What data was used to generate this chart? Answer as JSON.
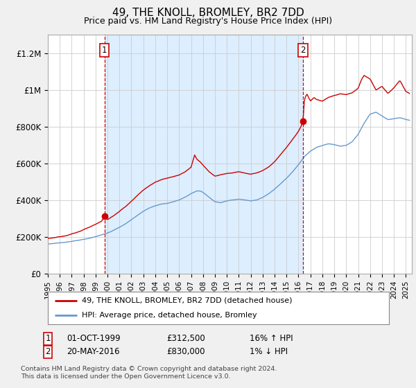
{
  "title": "49, THE KNOLL, BROMLEY, BR2 7DD",
  "subtitle": "Price paid vs. HM Land Registry's House Price Index (HPI)",
  "title_fontsize": 11,
  "subtitle_fontsize": 9,
  "background_color": "#f0f0f0",
  "plot_bg_color": "#ffffff",
  "shade_color": "#ddeeff",
  "ylabel_labels": [
    "£0",
    "£200K",
    "£400K",
    "£600K",
    "£800K",
    "£1M",
    "£1.2M"
  ],
  "ylabel_values": [
    0,
    200000,
    400000,
    600000,
    800000,
    1000000,
    1200000
  ],
  "ylim": [
    0,
    1300000
  ],
  "xlim_start": 1995.0,
  "xlim_end": 2025.5,
  "sale1_year": 1999.75,
  "sale1_price": 312500,
  "sale2_year": 2016.38,
  "sale2_price": 830000,
  "legend_entries": [
    "49, THE KNOLL, BROMLEY, BR2 7DD (detached house)",
    "HPI: Average price, detached house, Bromley"
  ],
  "annotation1": {
    "label": "1",
    "date": "01-OCT-1999",
    "price": "£312,500",
    "hpi": "16% ↑ HPI"
  },
  "annotation2": {
    "label": "2",
    "date": "20-MAY-2016",
    "price": "£830,000",
    "hpi": "1% ↓ HPI"
  },
  "footer": "Contains HM Land Registry data © Crown copyright and database right 2024.\nThis data is licensed under the Open Government Licence v3.0.",
  "line_color_red": "#cc0000",
  "line_color_blue": "#6699cc",
  "grid_color": "#cccccc",
  "hpi_knots": [
    [
      1995.0,
      160000
    ],
    [
      1995.5,
      162000
    ],
    [
      1996.0,
      165000
    ],
    [
      1996.5,
      168000
    ],
    [
      1997.0,
      172000
    ],
    [
      1997.5,
      178000
    ],
    [
      1998.0,
      185000
    ],
    [
      1998.5,
      192000
    ],
    [
      1999.0,
      200000
    ],
    [
      1999.5,
      210000
    ],
    [
      2000.0,
      220000
    ],
    [
      2000.5,
      235000
    ],
    [
      2001.0,
      252000
    ],
    [
      2001.5,
      270000
    ],
    [
      2002.0,
      292000
    ],
    [
      2002.5,
      315000
    ],
    [
      2003.0,
      338000
    ],
    [
      2003.5,
      355000
    ],
    [
      2004.0,
      368000
    ],
    [
      2004.5,
      378000
    ],
    [
      2005.0,
      382000
    ],
    [
      2005.5,
      390000
    ],
    [
      2006.0,
      400000
    ],
    [
      2006.5,
      415000
    ],
    [
      2007.0,
      435000
    ],
    [
      2007.5,
      450000
    ],
    [
      2007.8,
      448000
    ],
    [
      2008.0,
      440000
    ],
    [
      2008.5,
      415000
    ],
    [
      2009.0,
      390000
    ],
    [
      2009.5,
      385000
    ],
    [
      2010.0,
      395000
    ],
    [
      2010.5,
      400000
    ],
    [
      2011.0,
      405000
    ],
    [
      2011.5,
      400000
    ],
    [
      2012.0,
      395000
    ],
    [
      2012.5,
      400000
    ],
    [
      2013.0,
      415000
    ],
    [
      2013.5,
      435000
    ],
    [
      2014.0,
      460000
    ],
    [
      2014.5,
      490000
    ],
    [
      2015.0,
      520000
    ],
    [
      2015.5,
      555000
    ],
    [
      2016.0,
      595000
    ],
    [
      2016.5,
      640000
    ],
    [
      2017.0,
      670000
    ],
    [
      2017.5,
      690000
    ],
    [
      2018.0,
      700000
    ],
    [
      2018.5,
      710000
    ],
    [
      2019.0,
      705000
    ],
    [
      2019.5,
      695000
    ],
    [
      2020.0,
      700000
    ],
    [
      2020.5,
      720000
    ],
    [
      2021.0,
      760000
    ],
    [
      2021.5,
      820000
    ],
    [
      2022.0,
      870000
    ],
    [
      2022.5,
      880000
    ],
    [
      2023.0,
      860000
    ],
    [
      2023.5,
      840000
    ],
    [
      2024.0,
      845000
    ],
    [
      2024.5,
      850000
    ],
    [
      2025.0,
      840000
    ],
    [
      2025.3,
      835000
    ]
  ],
  "red_knots": [
    [
      1995.0,
      190000
    ],
    [
      1995.5,
      193000
    ],
    [
      1996.0,
      198000
    ],
    [
      1996.5,
      205000
    ],
    [
      1997.0,
      215000
    ],
    [
      1997.5,
      225000
    ],
    [
      1998.0,
      238000
    ],
    [
      1998.5,
      252000
    ],
    [
      1999.0,
      268000
    ],
    [
      1999.5,
      285000
    ],
    [
      1999.75,
      312500
    ],
    [
      2000.0,
      295000
    ],
    [
      2000.5,
      315000
    ],
    [
      2001.0,
      340000
    ],
    [
      2001.5,
      365000
    ],
    [
      2002.0,
      395000
    ],
    [
      2002.5,
      425000
    ],
    [
      2003.0,
      455000
    ],
    [
      2003.5,
      478000
    ],
    [
      2004.0,
      498000
    ],
    [
      2004.5,
      512000
    ],
    [
      2005.0,
      520000
    ],
    [
      2005.5,
      528000
    ],
    [
      2006.0,
      538000
    ],
    [
      2006.5,
      555000
    ],
    [
      2007.0,
      580000
    ],
    [
      2007.3,
      645000
    ],
    [
      2007.5,
      620000
    ],
    [
      2007.8,
      605000
    ],
    [
      2008.0,
      590000
    ],
    [
      2008.5,
      555000
    ],
    [
      2009.0,
      530000
    ],
    [
      2009.5,
      538000
    ],
    [
      2010.0,
      545000
    ],
    [
      2010.5,
      548000
    ],
    [
      2011.0,
      555000
    ],
    [
      2011.5,
      548000
    ],
    [
      2012.0,
      542000
    ],
    [
      2012.5,
      548000
    ],
    [
      2013.0,
      560000
    ],
    [
      2013.5,
      580000
    ],
    [
      2014.0,
      610000
    ],
    [
      2014.5,
      648000
    ],
    [
      2015.0,
      688000
    ],
    [
      2015.5,
      730000
    ],
    [
      2016.0,
      775000
    ],
    [
      2016.2,
      800000
    ],
    [
      2016.38,
      830000
    ],
    [
      2016.5,
      950000
    ],
    [
      2016.7,
      980000
    ],
    [
      2017.0,
      940000
    ],
    [
      2017.3,
      960000
    ],
    [
      2017.5,
      950000
    ],
    [
      2018.0,
      940000
    ],
    [
      2018.5,
      960000
    ],
    [
      2019.0,
      970000
    ],
    [
      2019.5,
      980000
    ],
    [
      2020.0,
      975000
    ],
    [
      2020.5,
      985000
    ],
    [
      2021.0,
      1010000
    ],
    [
      2021.3,
      1060000
    ],
    [
      2021.5,
      1080000
    ],
    [
      2022.0,
      1060000
    ],
    [
      2022.5,
      1000000
    ],
    [
      2023.0,
      1020000
    ],
    [
      2023.5,
      980000
    ],
    [
      2024.0,
      1010000
    ],
    [
      2024.5,
      1050000
    ],
    [
      2025.0,
      990000
    ],
    [
      2025.3,
      980000
    ]
  ]
}
